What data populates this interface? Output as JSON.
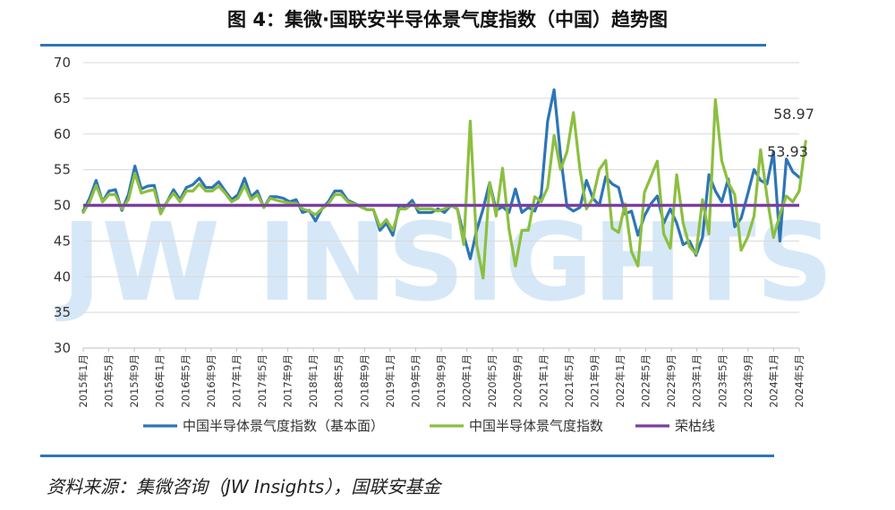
{
  "header": {
    "title": "图 4：集微·国联安半导体景气度指数（中国）趋势图"
  },
  "footer": {
    "source": "资料来源：集微咨询（JW Insights），国联安基金"
  },
  "watermark": "JW INSIGHTS",
  "colors": {
    "rule": "#2e75b6",
    "series_blue": "#2e75b6",
    "series_green": "#8cbf3f",
    "series_purple": "#7a3fa0"
  },
  "chart_data": {
    "type": "line",
    "ylim": [
      30,
      70
    ],
    "yticks": [
      30,
      35,
      40,
      45,
      50,
      55,
      60,
      65,
      70
    ],
    "grid": true,
    "legend_position": "bottom",
    "x_tick_labels": [
      "2015年1月",
      "2015年5月",
      "2015年9月",
      "2016年1月",
      "2016年5月",
      "2016年9月",
      "2017年1月",
      "2017年5月",
      "2017年9月",
      "2018年1月",
      "2018年5月",
      "2018年9月",
      "2019年1月",
      "2019年5月",
      "2019年9月",
      "2020年1月",
      "2020年5月",
      "2020年9月",
      "2021年1月",
      "2021年5月",
      "2021年9月",
      "2022年1月",
      "2022年5月",
      "2022年9月",
      "2023年1月",
      "2023年5月",
      "2023年9月",
      "2024年1月",
      "2024年5月"
    ],
    "series": [
      {
        "name": "中国半导体景气度指数（基本面）",
        "color": "#2e75b6",
        "values": [
          49.2,
          51,
          53.5,
          50.5,
          52,
          52.2,
          49.3,
          51.5,
          55.5,
          52.3,
          52.7,
          52.8,
          49,
          50.5,
          52.2,
          50.8,
          52.5,
          52.9,
          53.8,
          52.5,
          52.5,
          53.3,
          52,
          50.8,
          51.5,
          53.8,
          51.2,
          52,
          49.7,
          51.2,
          51.2,
          51,
          50.5,
          50.8,
          49,
          49.3,
          47.8,
          49.5,
          50.5,
          52,
          52,
          50.7,
          50.3,
          49.8,
          49.4,
          49.4,
          46.5,
          47.5,
          45.8,
          50,
          49.8,
          50.7,
          49,
          49,
          49,
          49.5,
          49,
          50,
          49.5,
          45.8,
          42.5,
          46.5,
          49.5,
          53.2,
          49.3,
          49.8,
          49,
          52.3,
          49,
          49.7,
          49.2,
          51.5,
          61.8,
          66.2,
          57,
          49.8,
          49.2,
          49.7,
          53.5,
          51,
          50,
          54,
          53,
          52.5,
          48.8,
          49.2,
          45.8,
          48.5,
          50.2,
          51.3,
          47.5,
          49.5,
          47.5,
          44.5,
          45,
          43,
          45.5,
          54.3,
          52,
          50.5,
          53.7,
          47,
          48.2,
          51.5,
          55,
          53.5,
          53,
          57.5,
          45,
          56.5,
          54.7,
          53.93
        ]
      },
      {
        "name": "中国半导体景气度指数",
        "color": "#8cbf3f",
        "values": [
          49,
          50.5,
          52.8,
          50.5,
          51.5,
          51.5,
          49.5,
          50.8,
          54.5,
          51.7,
          52,
          52.2,
          48.8,
          50.5,
          51.7,
          50.5,
          52,
          52,
          53,
          52,
          52,
          52.7,
          51.7,
          50.5,
          51,
          52.8,
          50.8,
          51.5,
          49.7,
          51,
          50.7,
          50.5,
          50.3,
          50.3,
          49.5,
          49.2,
          48.7,
          49.5,
          50.2,
          51.5,
          51.5,
          50.5,
          50.2,
          49.8,
          49.4,
          49.4,
          47,
          48,
          46.5,
          49.5,
          49.5,
          50.2,
          49.5,
          49.5,
          49.5,
          49.2,
          49.5,
          50,
          49.5,
          44.5,
          61.8,
          44.5,
          39.8,
          53.2,
          48.5,
          55.2,
          46.7,
          41.5,
          46.5,
          46.5,
          51.2,
          50.5,
          52.5,
          59.8,
          55,
          57.5,
          63,
          55,
          49.5,
          51,
          55,
          56.3,
          46.8,
          46.2,
          50.2,
          43.5,
          41.5,
          51.8,
          54,
          56.2,
          46,
          44,
          54.3,
          47.5,
          44.2,
          43.2,
          50.8,
          46,
          64.8,
          56.2,
          53.2,
          51.5,
          43.7,
          45.5,
          48.5,
          57.8,
          51.2,
          45.5,
          48.7,
          51.3,
          50.5,
          52,
          58.97
        ]
      },
      {
        "name": "荣枯线",
        "color": "#7a3fa0",
        "values": [
          50,
          50
        ]
      }
    ],
    "annotations": [
      {
        "text": "58.97",
        "series": 1
      },
      {
        "text": "53.93",
        "series": 0
      }
    ]
  }
}
